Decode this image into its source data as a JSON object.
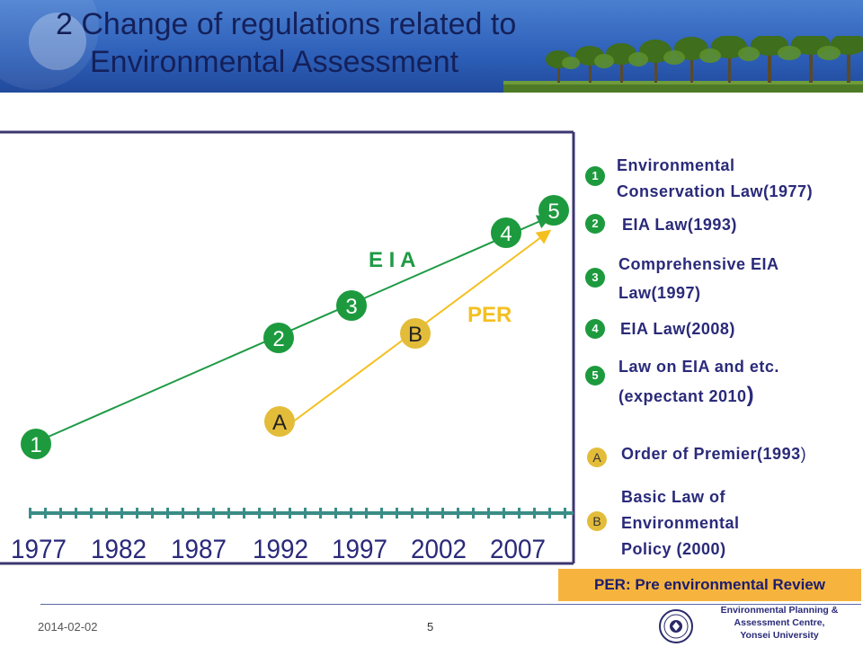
{
  "header": {
    "title_line1": "2 Change of regulations related to",
    "title_line2": "Environmental Assessment"
  },
  "chart": {
    "series": [
      {
        "name": "E I A",
        "color": "#1f9a45",
        "markers": [
          "1",
          "2",
          "3",
          "4",
          "5"
        ]
      },
      {
        "name": "PER",
        "color": "#f4c020",
        "markers": [
          "A",
          "B"
        ]
      }
    ],
    "years": [
      "1977",
      "1982",
      "1987",
      "1992",
      "1997",
      "2002",
      "2007"
    ],
    "eia_label": "E I A",
    "per_label": "PER",
    "m1": "1",
    "m2": "2",
    "m3": "3",
    "m4": "4",
    "m5": "5",
    "mA": "A",
    "mB": "B"
  },
  "legend": {
    "items": [
      {
        "marker": "1",
        "line1": "Environmental",
        "line2": "Conservation Law(1977)"
      },
      {
        "marker": "2",
        "line1": "EIA Law(1993)"
      },
      {
        "marker": "3",
        "line1": "Comprehensive EIA",
        "line2": "Law(1997)"
      },
      {
        "marker": "4",
        "line1": "EIA Law(2008)"
      },
      {
        "marker": "5",
        "line1": "Law on EIA and etc.",
        "line2": "(expectant 2010",
        "line2_close": ")"
      },
      {
        "marker": "A",
        "line1": "Order of Premier(1993",
        "line1_close": ")"
      },
      {
        "marker": "B",
        "line1": "Basic Law of",
        "line2": "Environmental",
        "line3": "Policy (2000)"
      }
    ]
  },
  "note": "PER: Pre environmental Review",
  "footer": {
    "date": "2014-02-02",
    "page": "5",
    "inst_line1": "Environmental Planning &",
    "inst_line2": "Assessment Centre,",
    "inst_line3": "Yonsei University"
  },
  "colors": {
    "header_blue": "#2d5fb8",
    "title_text": "#14205a",
    "frame": "#3b3670",
    "eia_line": "#1f9a45",
    "per_line": "#f4c020",
    "number_circle": "#1d9a3e",
    "letter_circle": "#e3bd3a",
    "note_bg": "#f6b43f",
    "ruler": "#3a8d86"
  }
}
